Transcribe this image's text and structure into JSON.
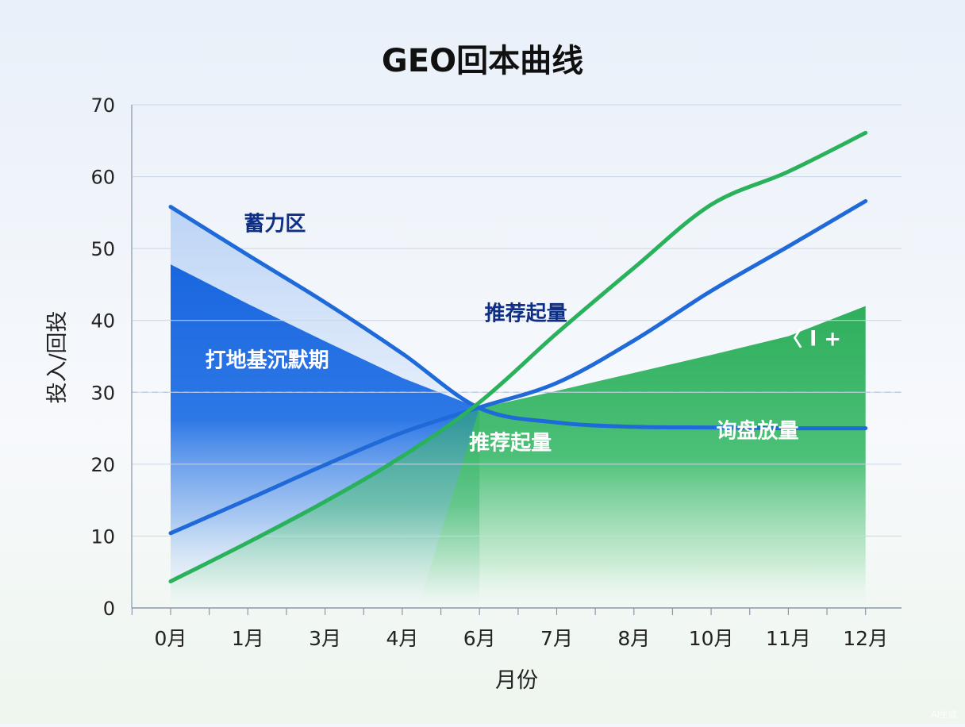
{
  "chart_data": {
    "type": "line",
    "title": "GEO回本曲线",
    "xlabel": "月份",
    "ylabel": "投入/回投",
    "categories": [
      "0月",
      "1月",
      "3月",
      "4月",
      "6月",
      "7月",
      "8月",
      "10月",
      "11月",
      "12月"
    ],
    "ylim": [
      0,
      70
    ],
    "yticks": [
      0,
      10,
      20,
      30,
      40,
      50,
      60,
      70
    ],
    "grid": true,
    "reference_line": 30,
    "series": [
      {
        "color": "#1e6ad9",
        "values": [
          55.8,
          49.1,
          42.5,
          35.4,
          27.8,
          25.8,
          25.2,
          25.1,
          25.0,
          25.0
        ]
      },
      {
        "color": "#1f6ad8",
        "values": [
          10.4,
          15.1,
          19.9,
          24.4,
          27.9,
          31.3,
          37.2,
          44.1,
          50.3,
          56.6
        ]
      },
      {
        "color": "#2ab15b",
        "values": [
          3.7,
          9.1,
          14.8,
          21.1,
          28.6,
          38.2,
          47.3,
          56.1,
          60.7,
          66.1
        ]
      }
    ],
    "areas": [
      {
        "color": "#cfe0f7",
        "values": [
          55.8,
          49.1,
          42.5,
          35.4,
          27.8
        ]
      },
      {
        "color": "#1f6fe0",
        "values": [
          47.8,
          42.3,
          37.1,
          32.0,
          27.8
        ]
      },
      {
        "color": "#36b463",
        "values": [
          27.8,
          30.2,
          32.7,
          35.2,
          37.8,
          42.0
        ]
      }
    ],
    "annotations": [
      {
        "text": "蓄力区",
        "x": 1.35,
        "y": 52.5,
        "color": "#0f2f86"
      },
      {
        "text": "推荐起量",
        "x": 4.6,
        "y": 40.0,
        "color": "#0f2f86"
      },
      {
        "text": "打地基沉默期",
        "x": 1.25,
        "y": 33.5,
        "color": "#ffffff"
      },
      {
        "text": "推荐起量",
        "x": 4.4,
        "y": 22.0,
        "color": "#ffffff"
      },
      {
        "text": "询盘放量",
        "x": 7.6,
        "y": 23.7,
        "color": "#ffffff"
      },
      {
        "text": "〈 l +",
        "x": 8.3,
        "y": 36.5,
        "color": "#ffffff"
      }
    ]
  },
  "watermark": "AI生成"
}
